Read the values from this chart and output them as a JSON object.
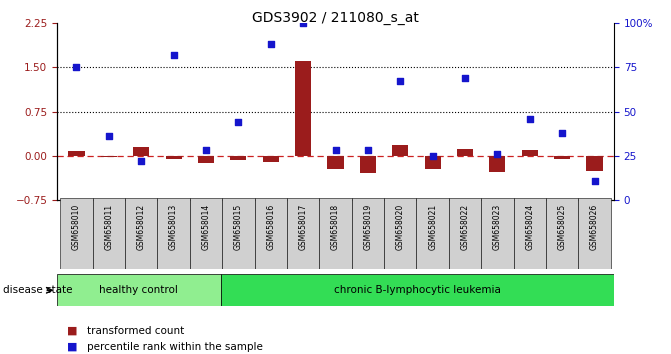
{
  "title": "GDS3902 / 211080_s_at",
  "samples": [
    "GSM658010",
    "GSM658011",
    "GSM658012",
    "GSM658013",
    "GSM658014",
    "GSM658015",
    "GSM658016",
    "GSM658017",
    "GSM658018",
    "GSM658019",
    "GSM658020",
    "GSM658021",
    "GSM658022",
    "GSM658023",
    "GSM658024",
    "GSM658025",
    "GSM658026"
  ],
  "transformed_count": [
    0.08,
    -0.02,
    0.15,
    -0.05,
    -0.12,
    -0.08,
    -0.1,
    1.6,
    -0.22,
    -0.3,
    0.18,
    -0.22,
    0.12,
    -0.28,
    0.1,
    -0.05,
    -0.25
  ],
  "percentile_rank": [
    75,
    36,
    22,
    82,
    28,
    44,
    88,
    100,
    28,
    28,
    67,
    25,
    69,
    26,
    46,
    38,
    11
  ],
  "healthy_control_count": 5,
  "ylim_left": [
    -0.75,
    2.25
  ],
  "ylim_right": [
    0,
    100
  ],
  "yticks_left": [
    -0.75,
    0.0,
    0.75,
    1.5,
    2.25
  ],
  "yticks_right": [
    0,
    25,
    50,
    75,
    100
  ],
  "hlines": [
    1.5,
    0.75
  ],
  "red_bar_color": "#9B1C1C",
  "blue_marker_color": "#1515CC",
  "dashed_line_color": "#CC2222",
  "bg_color": "#FFFFFF",
  "plot_bg_color": "#FFFFFF",
  "xtick_bg_color": "#D0D0D0",
  "healthy_bg": "#90EE90",
  "leukemia_bg": "#33DD55",
  "label_bar": "transformed count",
  "label_marker": "percentile rank within the sample",
  "disease_state_label": "disease state",
  "healthy_label": "healthy control",
  "leukemia_label": "chronic B-lymphocytic leukemia",
  "title_fontsize": 10,
  "bar_width": 0.5
}
